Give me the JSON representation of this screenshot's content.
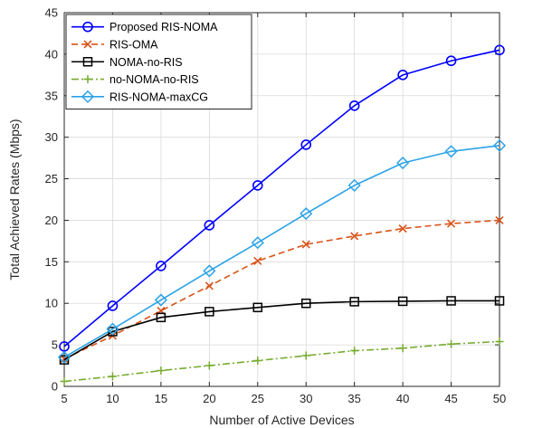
{
  "chart_data": {
    "type": "line",
    "title": "",
    "xlabel": "Number of Active Devices",
    "ylabel": "Total Achieved Rates (Mbps)",
    "xlim": [
      5,
      50
    ],
    "ylim": [
      0,
      45
    ],
    "xticks": [
      5,
      10,
      15,
      20,
      25,
      30,
      35,
      40,
      45,
      50
    ],
    "yticks": [
      0,
      5,
      10,
      15,
      20,
      25,
      30,
      35,
      40,
      45
    ],
    "grid": true,
    "legend_position": "top-left",
    "x": [
      5,
      10,
      15,
      20,
      25,
      30,
      35,
      40,
      45,
      50
    ],
    "series": [
      {
        "name": "Proposed RIS-NOMA",
        "color": "#0000ff",
        "marker": "circle",
        "dash": "solid",
        "values": [
          4.8,
          9.7,
          14.5,
          19.4,
          24.2,
          29.1,
          33.8,
          37.5,
          39.2,
          40.5
        ]
      },
      {
        "name": "RIS-OMA",
        "color": "#d95319",
        "marker": "cross",
        "dash": "dashed",
        "values": [
          3.3,
          6.1,
          9.1,
          12.1,
          15.1,
          17.1,
          18.1,
          19.0,
          19.6,
          20.0
        ]
      },
      {
        "name": "NOMA-no-RIS",
        "color": "#000000",
        "marker": "square",
        "dash": "solid",
        "values": [
          3.2,
          6.6,
          8.3,
          9.0,
          9.5,
          10.0,
          10.2,
          10.25,
          10.3,
          10.3
        ]
      },
      {
        "name": "no-NOMA-no-RIS",
        "color": "#77ac30",
        "marker": "plus",
        "dash": "dashdot",
        "values": [
          0.6,
          1.2,
          1.9,
          2.5,
          3.1,
          3.7,
          4.3,
          4.6,
          5.1,
          5.4
        ]
      },
      {
        "name": "RIS-NOMA-maxCG",
        "color": "#2ba3e6",
        "marker": "diamond",
        "dash": "solid",
        "values": [
          3.5,
          6.9,
          10.4,
          13.9,
          17.3,
          20.8,
          24.2,
          26.9,
          28.3,
          29.0
        ]
      }
    ]
  }
}
